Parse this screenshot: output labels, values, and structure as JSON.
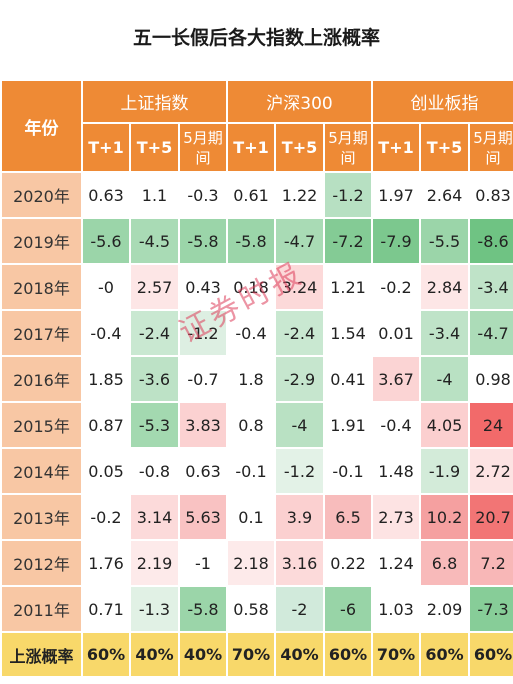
{
  "title": "五一长假后各大指数上涨概率",
  "header": {
    "year_label": "年份",
    "groups": [
      "上证指数",
      "沪深300",
      "创业板指"
    ],
    "sub": [
      "T+1",
      "T+5",
      "5月期间"
    ]
  },
  "rows": [
    {
      "year": "2020年",
      "values": [
        "0.63",
        "1.1",
        "-0.3",
        "0.61",
        "1.22",
        "-1.2",
        "1.97",
        "2.64",
        "0.83"
      ],
      "colors": [
        "#ffffff",
        "#ffffff",
        "#ffffff",
        "#ffffff",
        "#ffffff",
        "#b7e0c2",
        "#ffffff",
        "#ffffff",
        "#ffffff"
      ]
    },
    {
      "year": "2019年",
      "values": [
        "-5.6",
        "-4.5",
        "-5.8",
        "-5.8",
        "-4.7",
        "-7.2",
        "-7.9",
        "-5.5",
        "-8.6"
      ],
      "colors": [
        "#9bd5a9",
        "#a9dbb5",
        "#9bd5a9",
        "#9bd5a9",
        "#a9dbb5",
        "#84cb95",
        "#7cc88e",
        "#9bd5a9",
        "#6fc383"
      ]
    },
    {
      "year": "2018年",
      "values": [
        "-0",
        "2.57",
        "0.43",
        "0.18",
        "3.24",
        "1.21",
        "-0.2",
        "2.84",
        "-3.4"
      ],
      "colors": [
        "#ffffff",
        "#fde6e6",
        "#ffffff",
        "#ffffff",
        "#fcd9d9",
        "#ffffff",
        "#ffffff",
        "#fde6e6",
        "#bfe3c8"
      ]
    },
    {
      "year": "2017年",
      "values": [
        "-0.4",
        "-2.4",
        "-1.2",
        "-0.4",
        "-2.4",
        "1.54",
        "0.01",
        "-3.4",
        "-4.7"
      ],
      "colors": [
        "#ffffff",
        "#c9e8d1",
        "#ddefe2",
        "#ffffff",
        "#c9e8d1",
        "#ffffff",
        "#ffffff",
        "#bfe3c8",
        "#acdcb8"
      ]
    },
    {
      "year": "2016年",
      "values": [
        "1.85",
        "-3.6",
        "-0.7",
        "1.8",
        "-2.9",
        "0.41",
        "3.67",
        "-4",
        "0.98"
      ],
      "colors": [
        "#ffffff",
        "#bde2c6",
        "#ffffff",
        "#ffffff",
        "#c6e6ce",
        "#ffffff",
        "#fbd4d4",
        "#b9e1c3",
        "#ffffff"
      ]
    },
    {
      "year": "2015年",
      "values": [
        "0.87",
        "-5.3",
        "3.83",
        "0.8",
        "-4",
        "1.91",
        "-0.4",
        "4.05",
        "24"
      ],
      "colors": [
        "#ffffff",
        "#a3d9b0",
        "#fbd1d1",
        "#ffffff",
        "#b9e1c3",
        "#ffffff",
        "#ffffff",
        "#fbcfcf",
        "#f26a6a"
      ]
    },
    {
      "year": "2014年",
      "values": [
        "0.05",
        "-0.8",
        "0.63",
        "-0.1",
        "-1.2",
        "-0.1",
        "1.48",
        "-1.9",
        "2.72"
      ],
      "colors": [
        "#ffffff",
        "#ffffff",
        "#ffffff",
        "#ffffff",
        "#e3f2e7",
        "#ffffff",
        "#ffffff",
        "#d3ebd9",
        "#fde3e3"
      ]
    },
    {
      "year": "2013年",
      "values": [
        "-0.2",
        "3.14",
        "5.63",
        "0.1",
        "3.9",
        "6.5",
        "2.73",
        "10.2",
        "20.7"
      ],
      "colors": [
        "#ffffff",
        "#fcdada",
        "#f9c2c2",
        "#ffffff",
        "#fbd0d0",
        "#f8bcbc",
        "#fde3e3",
        "#f5a0a0",
        "#f27575"
      ]
    },
    {
      "year": "2012年",
      "values": [
        "1.76",
        "2.19",
        "-1",
        "2.18",
        "3.16",
        "0.22",
        "1.24",
        "6.8",
        "7.2"
      ],
      "colors": [
        "#ffffff",
        "#fdeaea",
        "#ffffff",
        "#fdeaea",
        "#fcdada",
        "#ffffff",
        "#ffffff",
        "#f8baba",
        "#f8b7b7"
      ]
    },
    {
      "year": "2011年",
      "values": [
        "0.71",
        "-1.3",
        "-5.8",
        "0.58",
        "-2",
        "-6",
        "1.03",
        "2.09",
        "-7.3"
      ],
      "colors": [
        "#ffffff",
        "#e1f1e5",
        "#9bd5a9",
        "#ffffff",
        "#d1eadb",
        "#98d4a7",
        "#ffffff",
        "#ffffff",
        "#87cd98"
      ]
    }
  ],
  "footer": {
    "label": "上涨概率",
    "values": [
      "60%",
      "40%",
      "40%",
      "70%",
      "40%",
      "60%",
      "70%",
      "60%",
      "60%"
    ]
  },
  "watermark": "证券时报"
}
